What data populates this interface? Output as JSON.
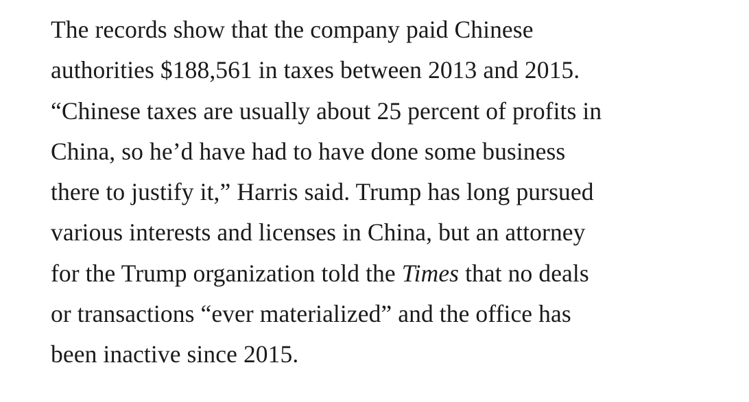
{
  "article": {
    "lines": [
      {
        "text": "The records show that the company paid Chinese"
      },
      {
        "text": "authorities $188,561 in taxes between 2013 and 2015."
      },
      {
        "text": "“Chinese taxes are usually about 25 percent of profits in"
      },
      {
        "text": "China, so he’d have had to have done some business"
      },
      {
        "text": "there to justify it,” Harris said. Trump has long pursued"
      },
      {
        "text": "various interests and licenses in China, but an attorney"
      },
      {
        "pre": "for the Trump organization told the ",
        "italic": "Times",
        "post": " that no deals"
      },
      {
        "text": "or transactions “ever materialized” and the office has"
      },
      {
        "text": "been inactive since 2015."
      }
    ]
  }
}
